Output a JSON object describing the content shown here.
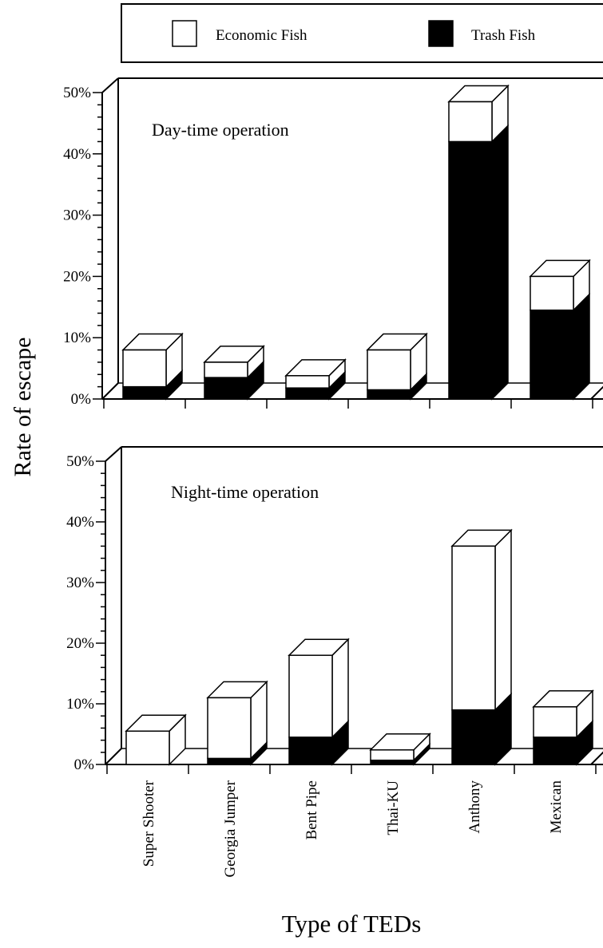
{
  "legend": {
    "items": [
      {
        "label": "Economic Fish",
        "color": "#ffffff"
      },
      {
        "label": "Trash Fish",
        "color": "#000000"
      }
    ]
  },
  "chart_data": {
    "type": "bar",
    "stacked": true,
    "three_d": true,
    "ylabel": "Rate of escape",
    "xlabel": "Type of TEDs",
    "ylim": [
      0,
      50
    ],
    "yticks": [
      "0%",
      "10%",
      "20%",
      "30%",
      "40%",
      "50%"
    ],
    "categories": [
      "Super Shooter",
      "Georgia Jumper",
      "Bent Pipe",
      "Thai-KU",
      "Anthony",
      "Mexican"
    ],
    "legend_position": "top",
    "panels": [
      {
        "title": "Day-time operation",
        "series": [
          {
            "name": "Trash Fish",
            "color": "#000000",
            "values": [
              2.0,
              3.5,
              1.8,
              1.5,
              42.0,
              14.5
            ]
          },
          {
            "name": "Economic Fish",
            "color": "#ffffff",
            "values": [
              6.0,
              2.5,
              2.0,
              6.5,
              6.5,
              5.5
            ]
          }
        ]
      },
      {
        "title": "Night-time operation",
        "series": [
          {
            "name": "Trash Fish",
            "color": "#000000",
            "values": [
              0.0,
              1.0,
              4.5,
              0.7,
              9.0,
              4.5
            ]
          },
          {
            "name": "Economic Fish",
            "color": "#ffffff",
            "values": [
              5.5,
              10.0,
              13.5,
              1.7,
              27.0,
              5.0
            ]
          }
        ]
      }
    ]
  }
}
